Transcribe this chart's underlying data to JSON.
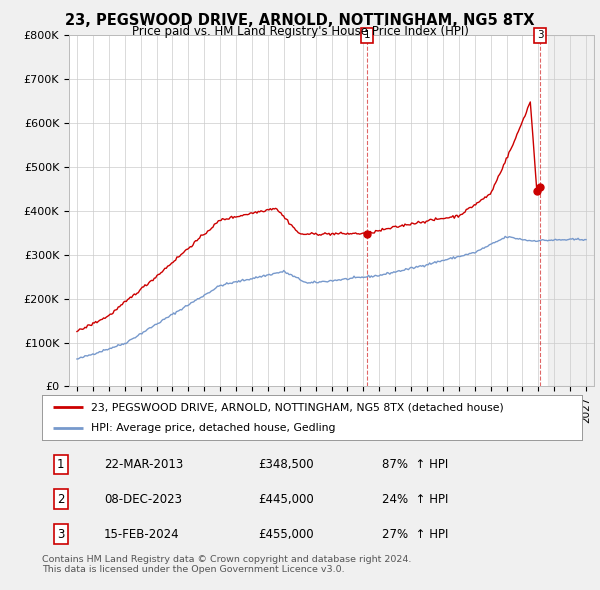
{
  "title": "23, PEGSWOOD DRIVE, ARNOLD, NOTTINGHAM, NG5 8TX",
  "subtitle": "Price paid vs. HM Land Registry's House Price Index (HPI)",
  "ylim": [
    0,
    800000
  ],
  "yticks": [
    0,
    100000,
    200000,
    300000,
    400000,
    500000,
    600000,
    700000,
    800000
  ],
  "ytick_labels": [
    "£0",
    "£100K",
    "£200K",
    "£300K",
    "£400K",
    "£500K",
    "£600K",
    "£700K",
    "£800K"
  ],
  "hpi_color": "#7799cc",
  "price_color": "#cc0000",
  "transactions": [
    {
      "id": 1,
      "date": "22-MAR-2013",
      "price": 348500,
      "pct": "87%",
      "direction": "↑"
    },
    {
      "id": 2,
      "date": "08-DEC-2023",
      "price": 445000,
      "pct": "24%",
      "direction": "↑"
    },
    {
      "id": 3,
      "date": "15-FEB-2024",
      "price": 455000,
      "pct": "27%",
      "direction": "↑"
    }
  ],
  "legend_label_red": "23, PEGSWOOD DRIVE, ARNOLD, NOTTINGHAM, NG5 8TX (detached house)",
  "legend_label_blue": "HPI: Average price, detached house, Gedling",
  "footer": "Contains HM Land Registry data © Crown copyright and database right 2024.\nThis data is licensed under the Open Government Licence v3.0.",
  "background_color": "#f0f0f0",
  "plot_bg_color": "#ffffff",
  "grid_color": "#cccccc",
  "t1": 2013.208,
  "t2": 2023.917,
  "t3": 2024.125,
  "xlim_left": 1994.5,
  "xlim_right": 2027.5,
  "xtick_start": 1995,
  "xtick_end": 2027
}
